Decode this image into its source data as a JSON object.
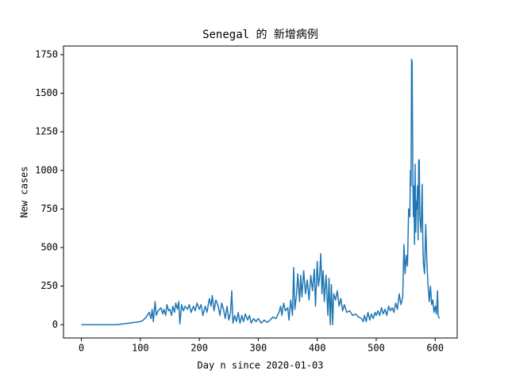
{
  "chart_data": {
    "type": "line",
    "title": "Senegal 的 新增病例",
    "xlabel": "Day n since 2020-01-03",
    "ylabel": "New cases",
    "color": "#1f77b4",
    "xlim": [
      -30.35,
      637.35
    ],
    "ylim": [
      -86,
      1806
    ],
    "xticks": [
      0,
      100,
      200,
      300,
      400,
      500,
      600
    ],
    "yticks": [
      0,
      250,
      500,
      750,
      1000,
      1250,
      1500,
      1750
    ],
    "x": [
      0,
      20,
      40,
      60,
      70,
      80,
      90,
      100,
      105,
      110,
      115,
      118,
      120,
      122,
      125,
      127,
      130,
      135,
      138,
      140,
      143,
      145,
      148,
      150,
      153,
      155,
      158,
      160,
      163,
      165,
      167,
      170,
      173,
      176,
      180,
      183,
      186,
      190,
      193,
      196,
      200,
      203,
      206,
      210,
      213,
      217,
      220,
      222,
      225,
      228,
      232,
      235,
      238,
      241,
      244,
      247,
      250,
      253,
      255,
      257,
      260,
      263,
      266,
      269,
      272,
      275,
      278,
      282,
      285,
      288,
      292,
      296,
      300,
      305,
      310,
      315,
      320,
      325,
      330,
      335,
      338,
      340,
      343,
      346,
      350,
      352,
      355,
      358,
      360,
      362,
      365,
      367,
      370,
      372,
      374,
      377,
      380,
      383,
      386,
      389,
      392,
      395,
      397,
      400,
      402,
      404,
      406,
      408,
      410,
      412,
      415,
      418,
      420,
      422,
      424,
      426,
      428,
      431,
      434,
      437,
      440,
      443,
      446,
      450,
      455,
      460,
      465,
      470,
      475,
      478,
      480,
      483,
      486,
      489,
      492,
      495,
      498,
      500,
      503,
      506,
      509,
      512,
      515,
      518,
      521,
      524,
      527,
      530,
      533,
      536,
      539,
      542,
      545,
      547,
      549,
      551,
      553,
      555,
      557,
      558,
      559,
      560,
      561,
      562,
      563,
      564,
      565,
      566,
      567,
      568,
      569,
      570,
      571,
      572,
      573,
      574,
      576,
      578,
      579,
      580,
      582,
      584,
      586,
      588,
      590,
      592,
      594,
      596,
      598,
      600,
      602,
      604,
      605,
      607
    ],
    "values": [
      0,
      0,
      0,
      0,
      5,
      10,
      15,
      20,
      30,
      50,
      80,
      40,
      100,
      20,
      150,
      60,
      90,
      110,
      70,
      100,
      60,
      130,
      90,
      100,
      60,
      120,
      80,
      140,
      100,
      150,
      5,
      130,
      90,
      120,
      100,
      130,
      80,
      120,
      90,
      140,
      100,
      130,
      60,
      120,
      80,
      170,
      120,
      190,
      90,
      160,
      120,
      60,
      140,
      100,
      40,
      120,
      30,
      80,
      220,
      10,
      60,
      20,
      80,
      10,
      60,
      20,
      70,
      30,
      60,
      10,
      40,
      20,
      40,
      10,
      30,
      15,
      30,
      50,
      40,
      80,
      120,
      60,
      140,
      90,
      110,
      30,
      160,
      60,
      370,
      100,
      200,
      330,
      150,
      320,
      180,
      350,
      200,
      290,
      160,
      320,
      220,
      360,
      120,
      410,
      250,
      310,
      460,
      200,
      350,
      150,
      320,
      60,
      300,
      0,
      260,
      0,
      200,
      160,
      220,
      120,
      170,
      90,
      130,
      80,
      90,
      60,
      70,
      50,
      40,
      20,
      60,
      20,
      80,
      30,
      70,
      40,
      80,
      60,
      90,
      60,
      110,
      70,
      100,
      60,
      120,
      90,
      110,
      80,
      140,
      100,
      200,
      130,
      180,
      520,
      330,
      450,
      380,
      750,
      700,
      1000,
      900,
      1720,
      1700,
      1000,
      700,
      900,
      520,
      1040,
      600,
      800,
      750,
      900,
      550,
      1060,
      1070,
      700,
      600,
      910,
      550,
      400,
      330,
      650,
      400,
      250,
      150,
      250,
      130,
      160,
      80,
      120,
      70,
      220,
      60,
      40
    ]
  }
}
